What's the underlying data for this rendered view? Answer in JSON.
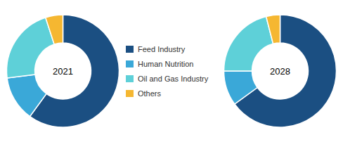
{
  "chart_data": [
    {
      "type": "pie",
      "title": "2021",
      "categories": [
        "Feed Industry",
        "Human Nutrition",
        "Oil and Gas Industry",
        "Others"
      ],
      "values": [
        60,
        13,
        22,
        5
      ],
      "colors": [
        "#1b4f82",
        "#3aa8d8",
        "#5ed0d8",
        "#f5b731"
      ],
      "legend": "right"
    },
    {
      "type": "pie",
      "title": "2028",
      "categories": [
        "Feed Industry",
        "Human Nutrition",
        "Oil and Gas Industry",
        "Others"
      ],
      "values": [
        65,
        10,
        21,
        4
      ],
      "colors": [
        "#1b4f82",
        "#3aa8d8",
        "#5ed0d8",
        "#f5b731"
      ]
    }
  ]
}
